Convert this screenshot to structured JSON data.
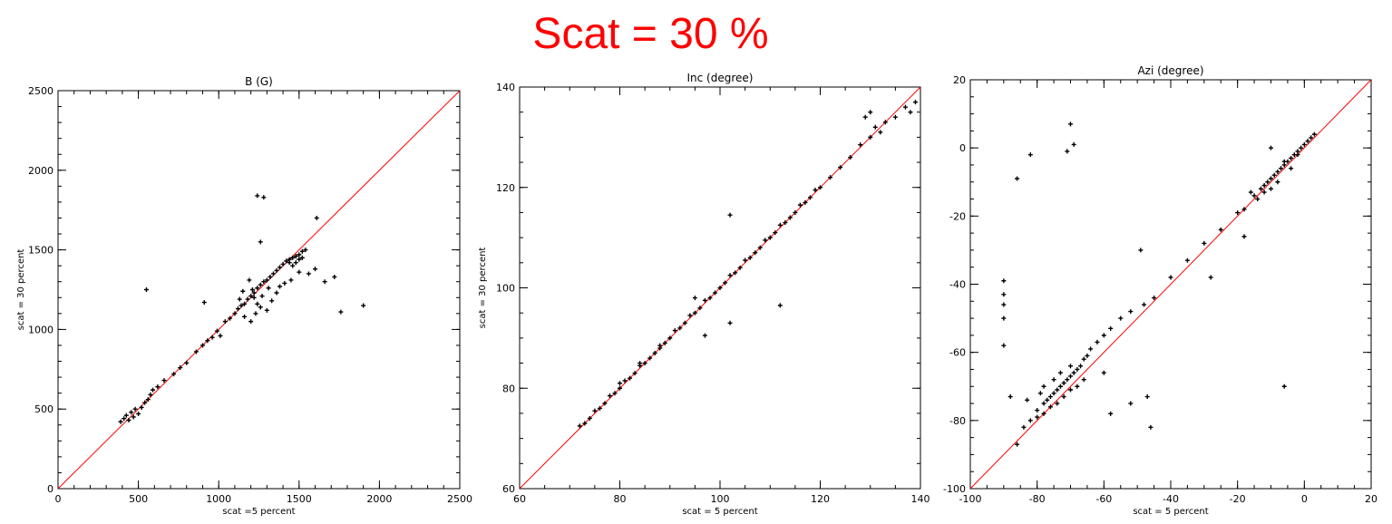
{
  "header": {
    "title": "Scat = 30 %",
    "title_color": "#ff0000"
  },
  "chart_data": [
    {
      "type": "scatter",
      "title": "B (G)",
      "xlabel": "scat =5 percent",
      "ylabel": "scat = 30 percent",
      "xlim": [
        0,
        2500
      ],
      "ylim": [
        0,
        2500
      ],
      "xticks": [
        0,
        500,
        1000,
        1500,
        2000,
        2500
      ],
      "yticks": [
        0,
        500,
        1000,
        1500,
        2000,
        2500
      ],
      "xminor": 100,
      "yminor": 100,
      "reference_line": {
        "from": [
          0,
          0
        ],
        "to": [
          2500,
          2500
        ],
        "color": "#ff0000"
      },
      "marker": "+",
      "marker_color": "#000000",
      "points": [
        [
          390,
          420
        ],
        [
          410,
          440
        ],
        [
          425,
          460
        ],
        [
          440,
          430
        ],
        [
          455,
          480
        ],
        [
          470,
          450
        ],
        [
          480,
          500
        ],
        [
          500,
          470
        ],
        [
          520,
          510
        ],
        [
          540,
          540
        ],
        [
          560,
          560
        ],
        [
          575,
          590
        ],
        [
          590,
          620
        ],
        [
          620,
          640
        ],
        [
          660,
          680
        ],
        [
          720,
          720
        ],
        [
          760,
          760
        ],
        [
          800,
          790
        ],
        [
          860,
          860
        ],
        [
          900,
          900
        ],
        [
          930,
          930
        ],
        [
          960,
          950
        ],
        [
          990,
          990
        ],
        [
          1010,
          960
        ],
        [
          1040,
          1050
        ],
        [
          1070,
          1070
        ],
        [
          1100,
          1100
        ],
        [
          1120,
          1130
        ],
        [
          1140,
          1150
        ],
        [
          1160,
          1160
        ],
        [
          1180,
          1190
        ],
        [
          1200,
          1210
        ],
        [
          1210,
          1250
        ],
        [
          1220,
          1230
        ],
        [
          1240,
          1260
        ],
        [
          1260,
          1280
        ],
        [
          1280,
          1300
        ],
        [
          1300,
          1310
        ],
        [
          1320,
          1330
        ],
        [
          1340,
          1350
        ],
        [
          1360,
          1370
        ],
        [
          1380,
          1390
        ],
        [
          1400,
          1410
        ],
        [
          1420,
          1430
        ],
        [
          1440,
          1440
        ],
        [
          1460,
          1450
        ],
        [
          1480,
          1460
        ],
        [
          1500,
          1470
        ],
        [
          1520,
          1490
        ],
        [
          1540,
          1500
        ],
        [
          1160,
          1080
        ],
        [
          1200,
          1050
        ],
        [
          1230,
          1100
        ],
        [
          1260,
          1140
        ],
        [
          1300,
          1120
        ],
        [
          1330,
          1180
        ],
        [
          1360,
          1230
        ],
        [
          1380,
          1270
        ],
        [
          1410,
          1290
        ],
        [
          1450,
          1310
        ],
        [
          1500,
          1360
        ],
        [
          1560,
          1350
        ],
        [
          1600,
          1380
        ],
        [
          1660,
          1300
        ],
        [
          1720,
          1330
        ],
        [
          1760,
          1110
        ],
        [
          1900,
          1150
        ],
        [
          550,
          1250
        ],
        [
          1240,
          1840
        ],
        [
          1280,
          1830
        ],
        [
          1260,
          1550
        ],
        [
          1610,
          1700
        ],
        [
          910,
          1170
        ],
        [
          1190,
          1310
        ],
        [
          1150,
          1240
        ],
        [
          1220,
          1200
        ],
        [
          1240,
          1160
        ],
        [
          1270,
          1210
        ],
        [
          1310,
          1260
        ],
        [
          1130,
          1190
        ],
        [
          1480,
          1420
        ],
        [
          1500,
          1440
        ],
        [
          1460,
          1400
        ],
        [
          1520,
          1450
        ],
        [
          1440,
          1420
        ]
      ]
    },
    {
      "type": "scatter",
      "title": "Inc (degree)",
      "xlabel": "scat = 5 percent",
      "ylabel": "scat = 30 percent",
      "xlim": [
        60,
        140
      ],
      "ylim": [
        60,
        140
      ],
      "xticks": [
        60,
        80,
        100,
        120,
        140
      ],
      "yticks": [
        60,
        80,
        100,
        120,
        140
      ],
      "xminor": 5,
      "yminor": 5,
      "reference_line": {
        "from": [
          60,
          60
        ],
        "to": [
          140,
          140
        ],
        "color": "#ff0000"
      },
      "marker": "+",
      "marker_color": "#000000",
      "points": [
        [
          72,
          72.5
        ],
        [
          73,
          73
        ],
        [
          74,
          74
        ],
        [
          75,
          75.5
        ],
        [
          76,
          76
        ],
        [
          77,
          77
        ],
        [
          78,
          78.5
        ],
        [
          79,
          79
        ],
        [
          80,
          80
        ],
        [
          81,
          81.5
        ],
        [
          82,
          82
        ],
        [
          83,
          83
        ],
        [
          84,
          84.5
        ],
        [
          85,
          85
        ],
        [
          86,
          86
        ],
        [
          87,
          87
        ],
        [
          88,
          88.5
        ],
        [
          89,
          89
        ],
        [
          90,
          90
        ],
        [
          91,
          91.5
        ],
        [
          92,
          92
        ],
        [
          93,
          93
        ],
        [
          94,
          94.5
        ],
        [
          95,
          95
        ],
        [
          96,
          96
        ],
        [
          97,
          97.5
        ],
        [
          98,
          98
        ],
        [
          99,
          99
        ],
        [
          100,
          100
        ],
        [
          101,
          101
        ],
        [
          102,
          102.5
        ],
        [
          103,
          103
        ],
        [
          104,
          104
        ],
        [
          105,
          105.5
        ],
        [
          106,
          106
        ],
        [
          107,
          107
        ],
        [
          108,
          108
        ],
        [
          109,
          109.5
        ],
        [
          110,
          110
        ],
        [
          111,
          111
        ],
        [
          112,
          112.5
        ],
        [
          113,
          113
        ],
        [
          114,
          114
        ],
        [
          115,
          115
        ],
        [
          116,
          116.5
        ],
        [
          117,
          117
        ],
        [
          118,
          118
        ],
        [
          119,
          119.5
        ],
        [
          120,
          120
        ],
        [
          122,
          122
        ],
        [
          124,
          124
        ],
        [
          126,
          126
        ],
        [
          128,
          128.5
        ],
        [
          130,
          130
        ],
        [
          131,
          132
        ],
        [
          132,
          131
        ],
        [
          133,
          133
        ],
        [
          135,
          134
        ],
        [
          137,
          136
        ],
        [
          138,
          135
        ],
        [
          139,
          137
        ],
        [
          129,
          134
        ],
        [
          130,
          135
        ],
        [
          102,
          114.5
        ],
        [
          112,
          96.5
        ],
        [
          102,
          93
        ],
        [
          97,
          90.5
        ],
        [
          95,
          98
        ],
        [
          88,
          88
        ],
        [
          84,
          85
        ],
        [
          80,
          81
        ]
      ]
    },
    {
      "type": "scatter",
      "title": "Azi (degree)",
      "xlabel": "scat = 5 percent",
      "ylabel": "",
      "xlim": [
        -100,
        20
      ],
      "ylim": [
        -100,
        20
      ],
      "xticks": [
        -100,
        -80,
        -60,
        -40,
        -20,
        0,
        20
      ],
      "yticks": [
        -100,
        -80,
        -60,
        -40,
        -20,
        0,
        20
      ],
      "xminor": 5,
      "yminor": 5,
      "reference_line": {
        "from": [
          -100,
          -100
        ],
        "to": [
          20,
          20
        ],
        "color": "#ff0000"
      },
      "marker": "+",
      "marker_color": "#000000",
      "points": [
        [
          -86,
          -87
        ],
        [
          -82,
          -80
        ],
        [
          -80,
          -77
        ],
        [
          -78,
          -75
        ],
        [
          -77,
          -74
        ],
        [
          -76,
          -73
        ],
        [
          -75,
          -72
        ],
        [
          -74,
          -71
        ],
        [
          -73,
          -70
        ],
        [
          -72,
          -69
        ],
        [
          -71,
          -68
        ],
        [
          -70,
          -67
        ],
        [
          -69,
          -66
        ],
        [
          -68,
          -65
        ],
        [
          -67,
          -64
        ],
        [
          -66,
          -62
        ],
        [
          -65,
          -61
        ],
        [
          -64,
          -59
        ],
        [
          -62,
          -57
        ],
        [
          -60,
          -55
        ],
        [
          -58,
          -53
        ],
        [
          -55,
          -50
        ],
        [
          -52,
          -48
        ],
        [
          -48,
          -46
        ],
        [
          -45,
          -44
        ],
        [
          -40,
          -38
        ],
        [
          -35,
          -33
        ],
        [
          -30,
          -28
        ],
        [
          -25,
          -24
        ],
        [
          -20,
          -19
        ],
        [
          -18,
          -18
        ],
        [
          -15,
          -14
        ],
        [
          -13,
          -12
        ],
        [
          -12,
          -11
        ],
        [
          -11,
          -10
        ],
        [
          -10,
          -9
        ],
        [
          -9,
          -8
        ],
        [
          -8,
          -7
        ],
        [
          -7,
          -6
        ],
        [
          -6,
          -5
        ],
        [
          -5,
          -4
        ],
        [
          -4,
          -3
        ],
        [
          -3,
          -2
        ],
        [
          -2,
          -1
        ],
        [
          -1,
          0
        ],
        [
          0,
          1
        ],
        [
          1,
          2
        ],
        [
          2,
          3
        ],
        [
          3,
          4
        ],
        [
          -90,
          -39
        ],
        [
          -90,
          -43
        ],
        [
          -90,
          -46
        ],
        [
          -90,
          -50
        ],
        [
          -90,
          -58
        ],
        [
          -88,
          -73
        ],
        [
          -86,
          -9
        ],
        [
          -82,
          -2
        ],
        [
          -70,
          7
        ],
        [
          -71,
          -1
        ],
        [
          -69,
          1
        ],
        [
          -49,
          -30
        ],
        [
          -46,
          -82
        ],
        [
          -6,
          -70
        ],
        [
          -10,
          0
        ],
        [
          -18,
          -26
        ],
        [
          -28,
          -38
        ],
        [
          -47,
          -73
        ],
        [
          -52,
          -75
        ],
        [
          -60,
          -66
        ],
        [
          -58,
          -78
        ],
        [
          -84,
          -82
        ],
        [
          -80,
          -79
        ],
        [
          -78,
          -78
        ],
        [
          -76,
          -76
        ],
        [
          -74,
          -75
        ],
        [
          -72,
          -73
        ],
        [
          -70,
          -71
        ],
        [
          -68,
          -70
        ],
        [
          -66,
          -68
        ],
        [
          -79,
          -72
        ],
        [
          -83,
          -74
        ],
        [
          -78,
          -70
        ],
        [
          -75,
          -68
        ],
        [
          -73,
          -66
        ],
        [
          -70,
          -64
        ],
        [
          -14,
          -15
        ],
        [
          -12,
          -13
        ],
        [
          -8,
          -10
        ],
        [
          -6,
          -4
        ],
        [
          -4,
          -6
        ],
        [
          -2,
          -2
        ],
        [
          -16,
          -13
        ],
        [
          -10,
          -12
        ]
      ]
    }
  ]
}
